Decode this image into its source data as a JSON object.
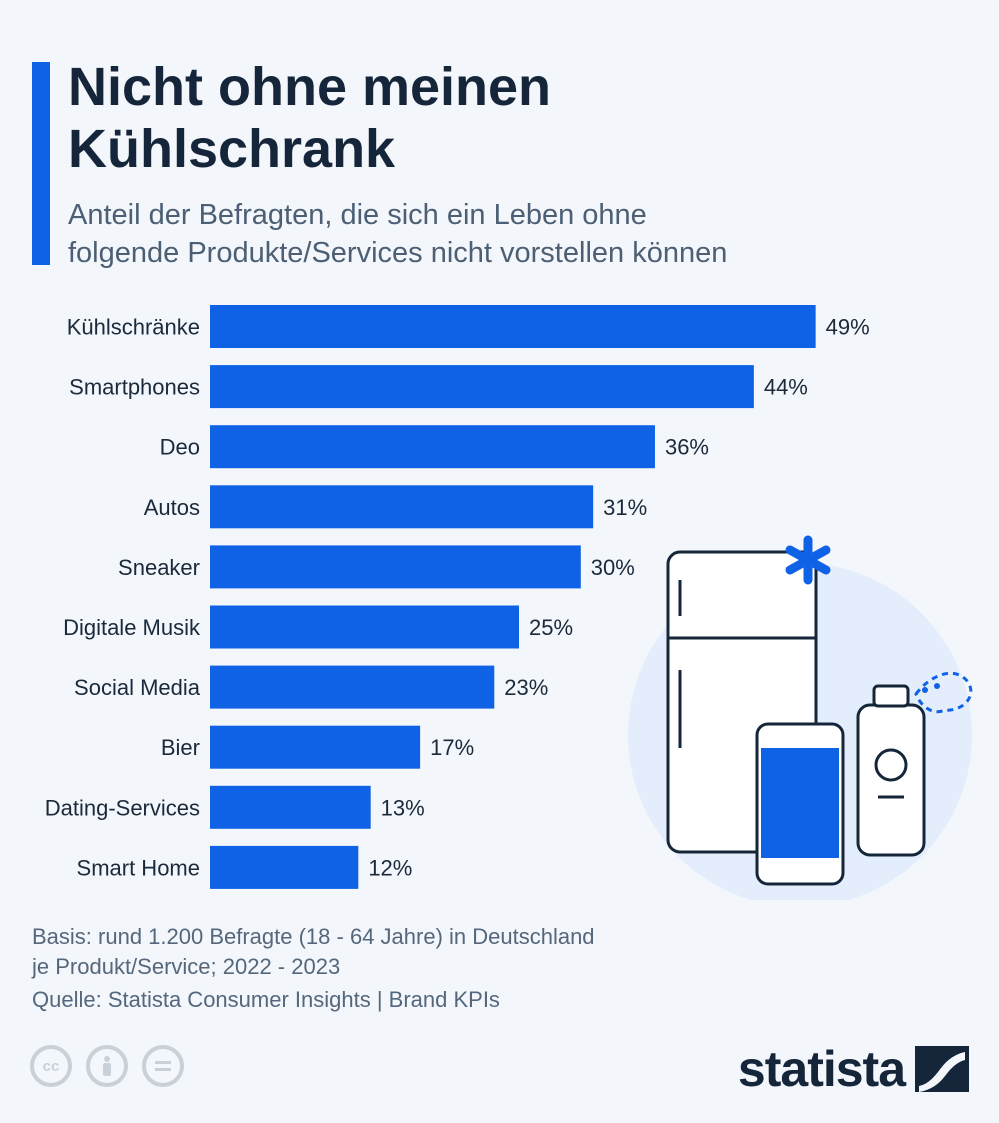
{
  "header": {
    "title": "Nicht ohne meinen\nKühlschrank",
    "subtitle": "Anteil der Befragten, die sich ein Leben ohne\nfolgende Produkte/Services nicht vorstellen können"
  },
  "chart_data": {
    "type": "bar",
    "orientation": "horizontal",
    "categories": [
      "Kühlschränke",
      "Smartphones",
      "Deo",
      "Autos",
      "Sneaker",
      "Digitale Musik",
      "Social Media",
      "Bier",
      "Dating-Services",
      "Smart Home"
    ],
    "values": [
      49,
      44,
      36,
      31,
      30,
      25,
      23,
      17,
      13,
      12
    ],
    "value_labels": [
      "49%",
      "44%",
      "36%",
      "31%",
      "30%",
      "25%",
      "23%",
      "17%",
      "13%",
      "12%"
    ],
    "unit": "%",
    "xlim": [
      0,
      50
    ],
    "grid": false,
    "legend": false,
    "bar_color": "#0f62e6"
  },
  "footer": {
    "basis": "Basis: rund 1.200 Befragte (18 - 64 Jahre) in Deutschland\nje Produkt/Service; 2022 - 2023",
    "source": "Quelle: Statista Consumer Insights  |  Brand KPIs"
  },
  "license": {
    "cc_label": "cc",
    "icons": [
      "cc-icon",
      "attribution-icon",
      "no-derivatives-icon"
    ]
  },
  "brand": {
    "name": "statista"
  },
  "colors": {
    "accent": "#0f62e6",
    "text": "#16263a",
    "background": "#f3f6fa"
  }
}
